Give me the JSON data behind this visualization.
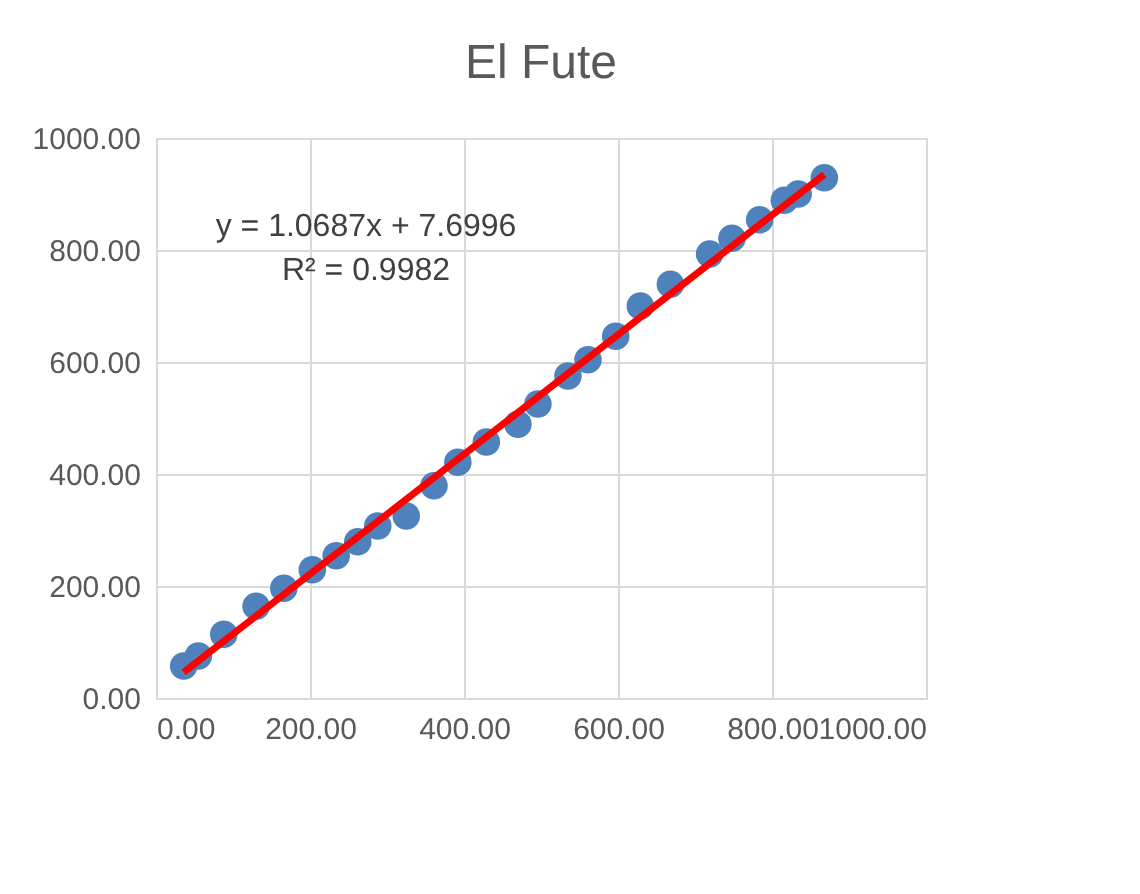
{
  "chart_data": {
    "type": "scatter",
    "title": "El Fute",
    "series": [
      {
        "color": "#4f81bd",
        "marker": "circle",
        "x": [
          36,
          55,
          88,
          130,
          166,
          203,
          234,
          262,
          288,
          325,
          361,
          392,
          429,
          470,
          496,
          535,
          561,
          597,
          629,
          668,
          719,
          748,
          784,
          816,
          834,
          868
        ],
        "values": [
          57,
          75,
          114,
          164,
          196,
          229,
          254,
          279,
          307,
          325,
          379,
          421,
          457,
          489,
          525,
          575,
          604,
          646,
          700,
          739,
          793,
          821,
          854,
          889,
          900,
          929
        ]
      },
      {
        "type": "line",
        "color": "#ff0000",
        "line_style": "solid",
        "marker": "none",
        "x": [
          36,
          868
        ],
        "values": [
          46,
          935
        ]
      }
    ],
    "xlim": [
      0,
      1000
    ],
    "ylim": [
      0,
      1000
    ],
    "xticks": [
      {
        "value": 0,
        "label": "0.00"
      },
      {
        "value": 200,
        "label": "200.00"
      },
      {
        "value": 400,
        "label": "400.00"
      },
      {
        "value": 600,
        "label": "600.00"
      },
      {
        "value": 800,
        "label": "800.00"
      },
      {
        "value": 1000,
        "label": "1000.00"
      }
    ],
    "yticks": [
      {
        "value": 0,
        "label": "0.00"
      },
      {
        "value": 200,
        "label": "200.00"
      },
      {
        "value": 400,
        "label": "400.00"
      },
      {
        "value": 600,
        "label": "600.00"
      },
      {
        "value": 800,
        "label": "800.00"
      },
      {
        "value": 1000,
        "label": "1000.00"
      }
    ],
    "grid": true,
    "annotations": [
      "y = 1.0687x + 7.6996",
      "R² = 0.9982"
    ]
  }
}
